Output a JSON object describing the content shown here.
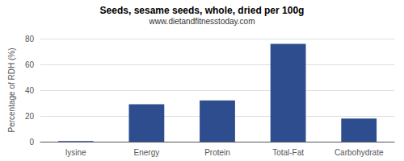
{
  "chart_data": {
    "type": "bar",
    "title": "Seeds, sesame seeds, whole, dried per 100g",
    "subtitle": "www.dietandfitnesstoday.com",
    "ylabel": "Percentage of RDH (%)",
    "categories": [
      "lysine",
      "Energy",
      "Protein",
      "Total-Fat",
      "Carbohydrate"
    ],
    "values": [
      0.5,
      29,
      32,
      76,
      18
    ],
    "color": "#2d4d8e",
    "ylim": [
      0,
      80
    ],
    "yticks": [
      0,
      20,
      40,
      60,
      80
    ],
    "grid": true
  }
}
